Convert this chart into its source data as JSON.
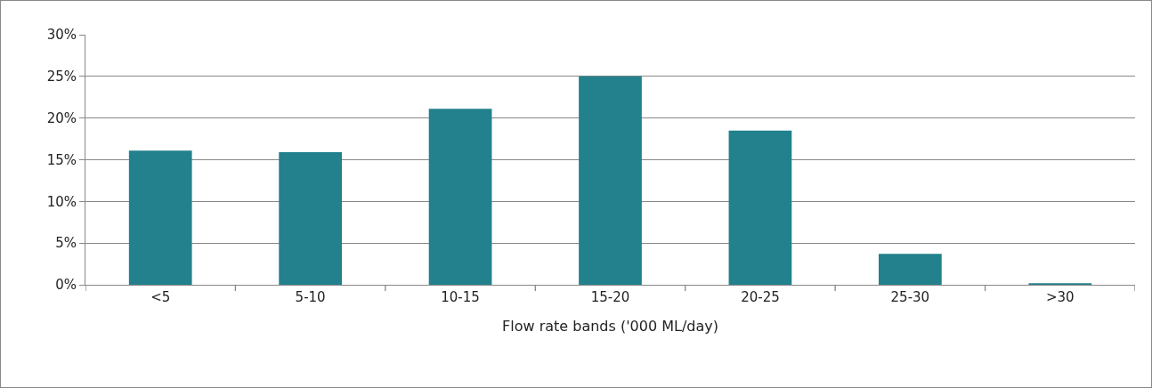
{
  "chart_data": {
    "type": "bar",
    "xlabel": "Flow rate bands ('000 ML/day)",
    "categories": [
      "<5",
      "5-10",
      "10-15",
      "15-20",
      "20-25",
      "25-30",
      ">30"
    ],
    "values": [
      16.1,
      15.9,
      21.1,
      25.0,
      18.5,
      3.7,
      0.2
    ],
    "color": "#22818c",
    "ylim": [
      0,
      30
    ],
    "yticks": [
      {
        "value": 0,
        "label": "0%"
      },
      {
        "value": 5,
        "label": "5%"
      },
      {
        "value": 10,
        "label": "10%"
      },
      {
        "value": 15,
        "label": "15%"
      },
      {
        "value": 20,
        "label": "20%"
      },
      {
        "value": 25,
        "label": "25%"
      },
      {
        "value": 30,
        "label": "30%"
      }
    ],
    "grid": "y",
    "legend": false
  }
}
